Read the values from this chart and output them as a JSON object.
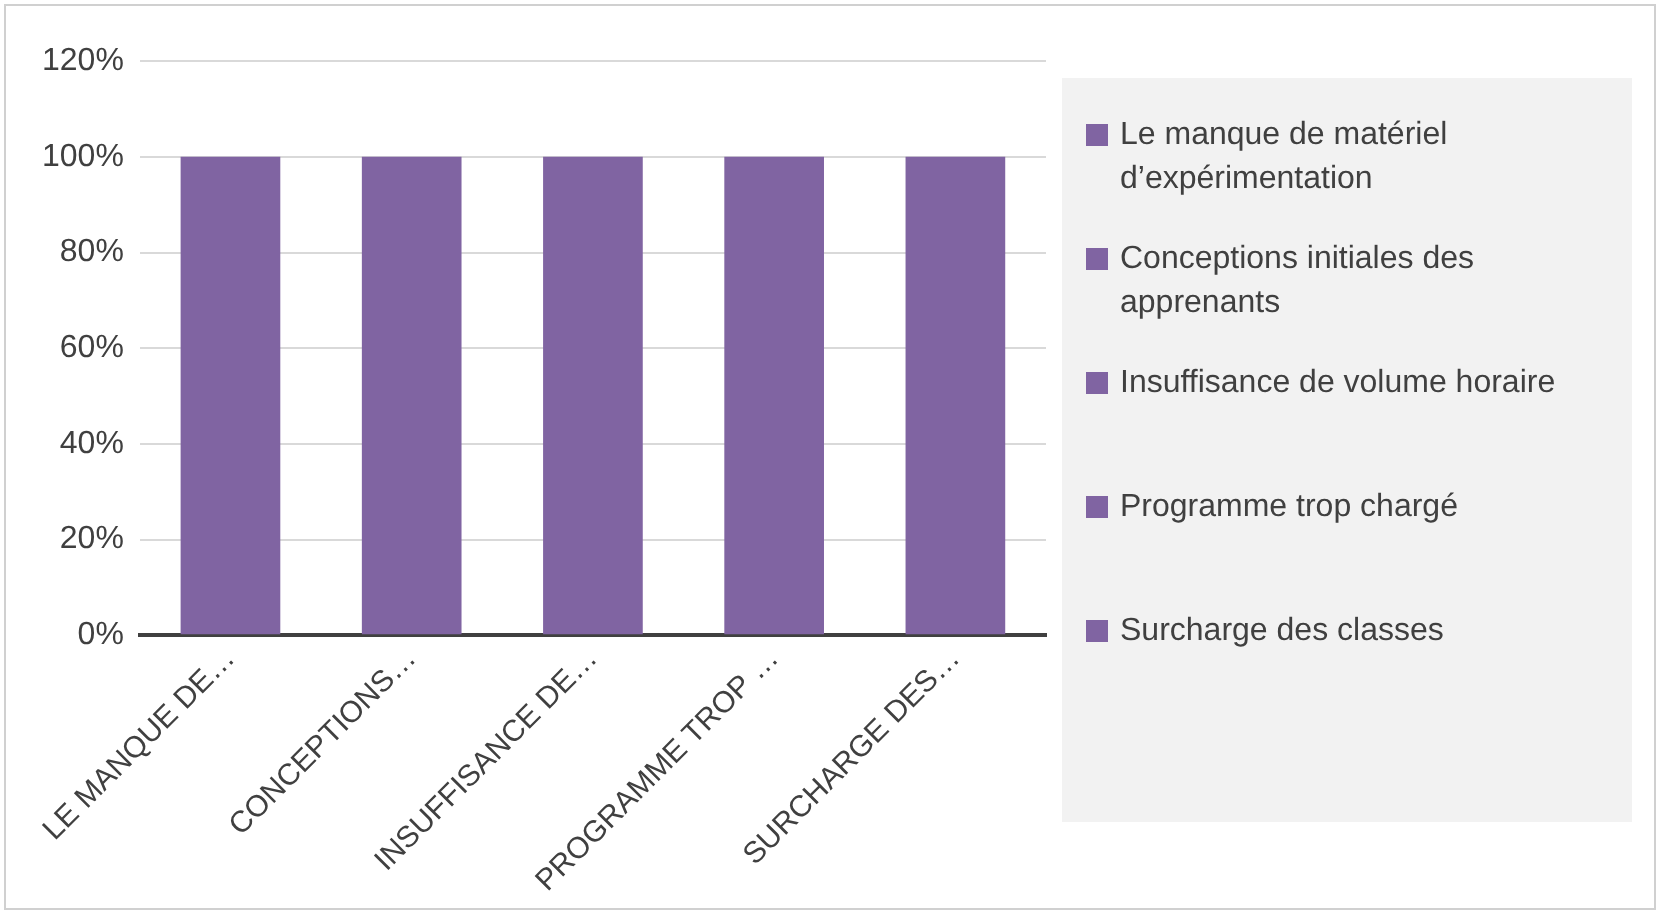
{
  "chart_data": {
    "type": "bar",
    "categories": [
      "LE MANQUE DE…",
      "CONCEPTIONS…",
      "INSUFFISANCE DE…",
      "PROGRAMME TROP …",
      "SURCHARGE DES…"
    ],
    "series": [
      {
        "name": "Le manque de matériel d’expérimentation",
        "color": "#8064a2",
        "values": [
          100,
          null,
          null,
          null,
          null
        ]
      },
      {
        "name": "Conceptions initiales des apprenants",
        "color": "#8064a2",
        "values": [
          null,
          100,
          null,
          null,
          null
        ]
      },
      {
        "name": "Insuffisance de volume horaire",
        "color": "#8064a2",
        "values": [
          null,
          null,
          100,
          null,
          null
        ]
      },
      {
        "name": "Programme trop chargé",
        "color": "#8064a2",
        "values": [
          null,
          null,
          null,
          100,
          null
        ]
      },
      {
        "name": "Surcharge des classes",
        "color": "#8064a2",
        "values": [
          null,
          null,
          null,
          null,
          100
        ]
      }
    ],
    "ylim": [
      0,
      120
    ],
    "yticks": [
      {
        "value": 0,
        "label": "0%"
      },
      {
        "value": 20,
        "label": "20%"
      },
      {
        "value": 40,
        "label": "40%"
      },
      {
        "value": 60,
        "label": "60%"
      },
      {
        "value": 80,
        "label": "80%"
      },
      {
        "value": 100,
        "label": "100%"
      },
      {
        "value": 120,
        "label": "120%"
      }
    ],
    "grid": "y",
    "legend": "right"
  }
}
